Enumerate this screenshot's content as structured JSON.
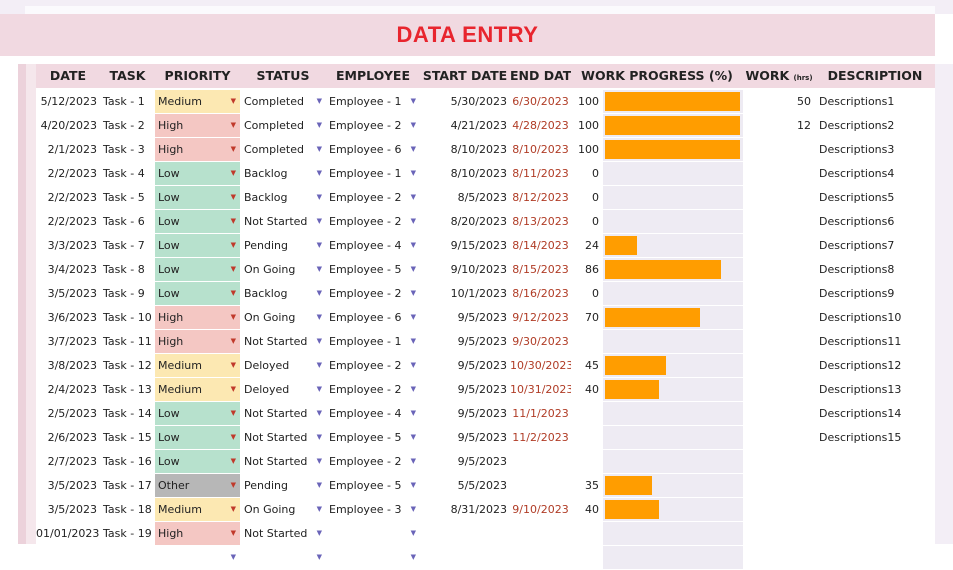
{
  "title": "DATA ENTRY",
  "headers": {
    "date": "DATE",
    "task": "TASK",
    "priority": "PRIORITY",
    "status": "STATUS",
    "employee": "EMPLOYEE",
    "start_date": "START DATE",
    "end_date": "END DATE",
    "work_progress": "WORK PROGRESS (%)",
    "work": "WORK",
    "work_unit": "(hrs)",
    "description": "DESCRIPTION"
  },
  "colors": {
    "high": "#f4c7c3",
    "medium": "#fce8b2",
    "low": "#b7e1cd",
    "other": "#b7b7b7",
    "bar": "#ff9d00",
    "title": "#e8252e"
  },
  "rows": [
    {
      "date": "5/12/2023",
      "task": "Task - 1",
      "priority": "Medium",
      "status": "Completed",
      "employee": "Employee - 1",
      "start": "5/30/2023",
      "end": "6/30/2023",
      "progress": "100",
      "work": "50",
      "desc": "Descriptions1"
    },
    {
      "date": "4/20/2023",
      "task": "Task - 2",
      "priority": "High",
      "status": "Completed",
      "employee": "Employee - 2",
      "start": "4/21/2023",
      "end": "4/28/2023",
      "progress": "100",
      "work": "12",
      "desc": "Descriptions2"
    },
    {
      "date": "2/1/2023",
      "task": "Task - 3",
      "priority": "High",
      "status": "Completed",
      "employee": "Employee - 6",
      "start": "8/10/2023",
      "end": "8/10/2023",
      "progress": "100",
      "work": "",
      "desc": "Descriptions3"
    },
    {
      "date": "2/2/2023",
      "task": "Task - 4",
      "priority": "Low",
      "status": "Backlog",
      "employee": "Employee - 1",
      "start": "8/10/2023",
      "end": "8/11/2023",
      "progress": "0",
      "work": "",
      "desc": "Descriptions4"
    },
    {
      "date": "2/2/2023",
      "task": "Task - 5",
      "priority": "Low",
      "status": "Backlog",
      "employee": "Employee - 2",
      "start": "8/5/2023",
      "end": "8/12/2023",
      "progress": "0",
      "work": "",
      "desc": "Descriptions5"
    },
    {
      "date": "2/2/2023",
      "task": "Task - 6",
      "priority": "Low",
      "status": "Not Started",
      "employee": "Employee - 2",
      "start": "8/20/2023",
      "end": "8/13/2023",
      "progress": "0",
      "work": "",
      "desc": "Descriptions6"
    },
    {
      "date": "3/3/2023",
      "task": "Task - 7",
      "priority": "Low",
      "status": "Pending",
      "employee": "Employee - 4",
      "start": "9/15/2023",
      "end": "8/14/2023",
      "progress": "24",
      "work": "",
      "desc": "Descriptions7"
    },
    {
      "date": "3/4/2023",
      "task": "Task - 8",
      "priority": "Low",
      "status": "On Going",
      "employee": "Employee - 5",
      "start": "9/10/2023",
      "end": "8/15/2023",
      "progress": "86",
      "work": "",
      "desc": "Descriptions8"
    },
    {
      "date": "3/5/2023",
      "task": "Task - 9",
      "priority": "Low",
      "status": "Backlog",
      "employee": "Employee - 2",
      "start": "10/1/2023",
      "end": "8/16/2023",
      "progress": "0",
      "work": "",
      "desc": "Descriptions9"
    },
    {
      "date": "3/6/2023",
      "task": "Task - 10",
      "priority": "High",
      "status": "On Going",
      "employee": "Employee - 6",
      "start": "9/5/2023",
      "end": "9/12/2023",
      "progress": "70",
      "work": "",
      "desc": "Descriptions10"
    },
    {
      "date": "3/7/2023",
      "task": "Task - 11",
      "priority": "High",
      "status": "Not Started",
      "employee": "Employee - 1",
      "start": "9/5/2023",
      "end": "9/30/2023",
      "progress": "",
      "work": "",
      "desc": "Descriptions11"
    },
    {
      "date": "3/8/2023",
      "task": "Task - 12",
      "priority": "Medium",
      "status": "Deloyed",
      "employee": "Employee - 2",
      "start": "9/5/2023",
      "end": "10/30/2023",
      "progress": "45",
      "work": "",
      "desc": "Descriptions12"
    },
    {
      "date": "2/4/2023",
      "task": "Task - 13",
      "priority": "Medium",
      "status": "Deloyed",
      "employee": "Employee - 2",
      "start": "9/5/2023",
      "end": "10/31/2023",
      "progress": "40",
      "work": "",
      "desc": "Descriptions13"
    },
    {
      "date": "2/5/2023",
      "task": "Task - 14",
      "priority": "Low",
      "status": "Not Started",
      "employee": "Employee - 4",
      "start": "9/5/2023",
      "end": "11/1/2023",
      "progress": "",
      "work": "",
      "desc": "Descriptions14"
    },
    {
      "date": "2/6/2023",
      "task": "Task - 15",
      "priority": "Low",
      "status": "Not Started",
      "employee": "Employee - 5",
      "start": "9/5/2023",
      "end": "11/2/2023",
      "progress": "",
      "work": "",
      "desc": "Descriptions15"
    },
    {
      "date": "2/7/2023",
      "task": "Task - 16",
      "priority": "Low",
      "status": "Not Started",
      "employee": "Employee - 2",
      "start": "9/5/2023",
      "end": "",
      "progress": "",
      "work": "",
      "desc": ""
    },
    {
      "date": "3/5/2023",
      "task": "Task - 17",
      "priority": "Other",
      "status": "Pending",
      "employee": "Employee - 5",
      "start": "5/5/2023",
      "end": "",
      "progress": "35",
      "work": "",
      "desc": ""
    },
    {
      "date": "3/5/2023",
      "task": "Task - 18",
      "priority": "Medium",
      "status": "On Going",
      "employee": "Employee - 3",
      "start": "8/31/2023",
      "end": "9/10/2023",
      "progress": "40",
      "work": "",
      "desc": ""
    },
    {
      "date": "01/01/2023",
      "task": "Task - 19",
      "priority": "High",
      "status": "Not Started",
      "employee": "",
      "start": "",
      "end": "",
      "progress": "",
      "work": "",
      "desc": ""
    },
    {
      "date": "",
      "task": "",
      "priority": "",
      "status": "",
      "employee": "",
      "start": "",
      "end": "",
      "progress": "",
      "work": "",
      "desc": ""
    }
  ]
}
